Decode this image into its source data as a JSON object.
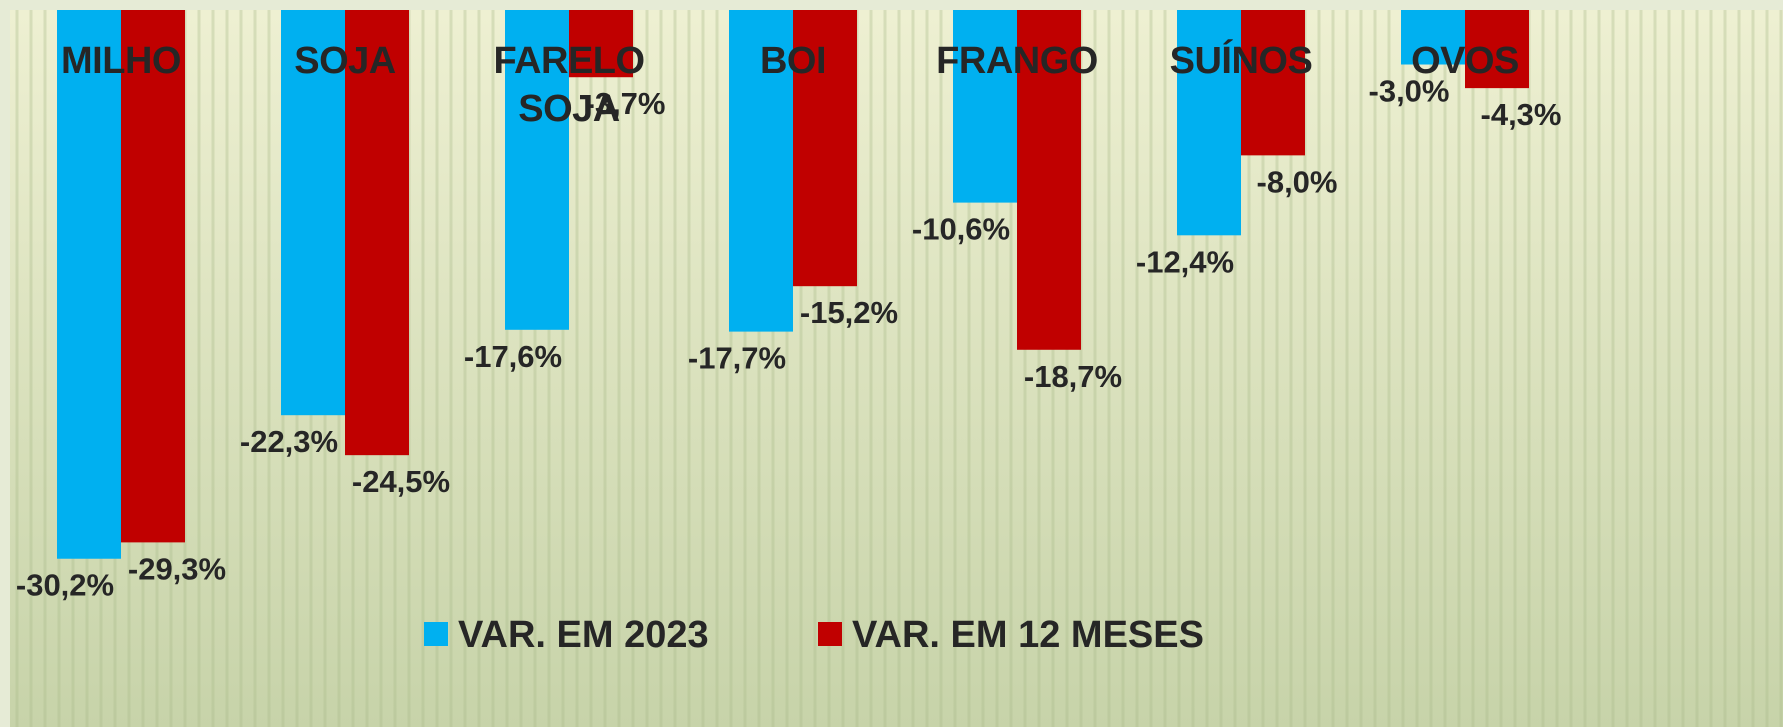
{
  "chart_data": {
    "type": "bar",
    "categories": [
      "MILHO",
      "SOJA",
      "FARELO SOJA",
      "BOI",
      "FRANGO",
      "SUÍNOS",
      "OVOS"
    ],
    "series": [
      {
        "name": "VAR. EM 2023",
        "color": "#00b0f0",
        "values": [
          -30.2,
          -22.3,
          -17.6,
          -17.7,
          -10.6,
          -12.4,
          -3.0
        ],
        "labels": [
          "-30,2%",
          "-22,3%",
          "-17,6%",
          "-17,7%",
          "-10,6%",
          "-12,4%",
          "-3,0%"
        ]
      },
      {
        "name": "VAR. EM 12 MESES",
        "color": "#c00000",
        "values": [
          -29.3,
          -24.5,
          -3.7,
          -15.2,
          -18.7,
          -8.0,
          -4.3
        ],
        "labels": [
          "-29,3%",
          "-24,5%",
          "-3,7%",
          "-15,2%",
          "-18,7%",
          "-8,0%",
          "-4,3%"
        ]
      }
    ],
    "ylim": [
      -35,
      0
    ],
    "legend": "bottom-center",
    "grid": false,
    "background": {
      "top_color": "#eef0d2",
      "bottom_color": "#c7d3a9",
      "row_color": "#a8b98a",
      "frame_color": "#e6ebd6"
    }
  }
}
